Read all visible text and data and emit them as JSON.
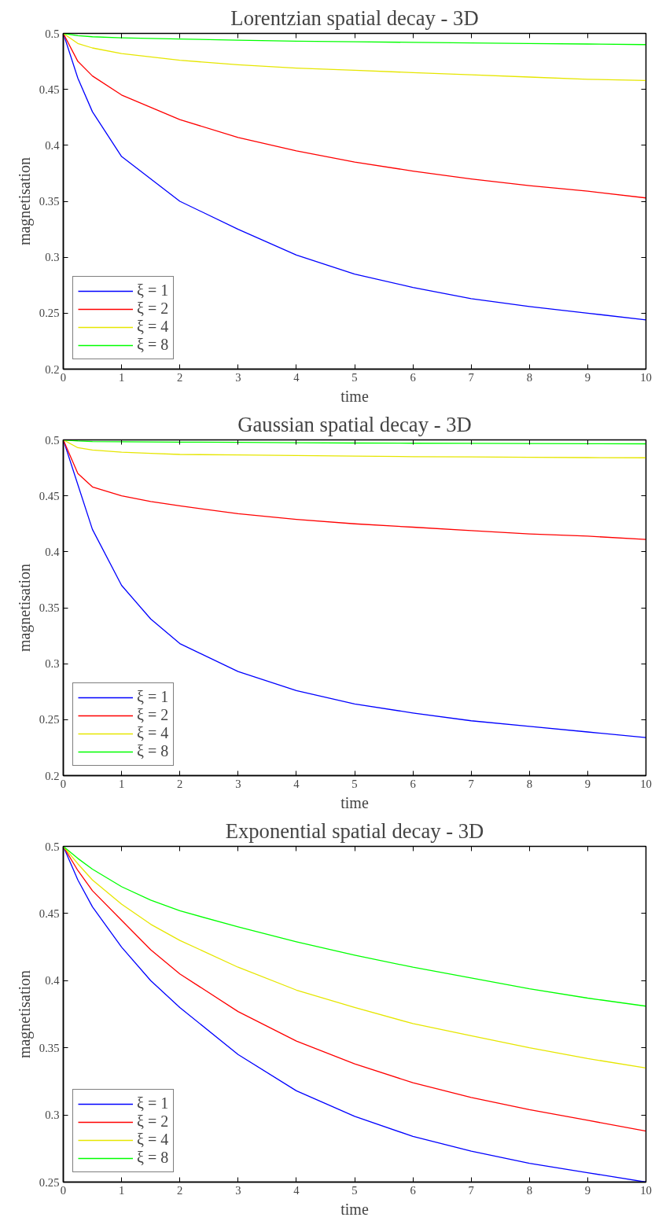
{
  "chart_data": [
    {
      "type": "line",
      "title": "Lorentzian spatial decay - 3D",
      "xlabel": "time",
      "ylabel": "magnetisation",
      "x": [
        0,
        0.25,
        0.5,
        1,
        2,
        3,
        4,
        5,
        6,
        7,
        8,
        9,
        10
      ],
      "xlim": [
        0,
        10
      ],
      "ylim": [
        0.2,
        0.5
      ],
      "xticks": [
        0,
        1,
        2,
        3,
        4,
        5,
        6,
        7,
        8,
        9,
        10
      ],
      "yticks": [
        0.2,
        0.25,
        0.3,
        0.35,
        0.4,
        0.45,
        0.5
      ],
      "grid": false,
      "legend": "bottom left",
      "series": [
        {
          "name": "ξ = 1",
          "color": "#0000ff",
          "values": [
            0.5,
            0.46,
            0.43,
            0.39,
            0.35,
            0.325,
            0.302,
            0.285,
            0.273,
            0.263,
            0.256,
            0.25,
            0.244
          ]
        },
        {
          "name": "ξ = 2",
          "color": "#ff0000",
          "values": [
            0.5,
            0.475,
            0.462,
            0.445,
            0.423,
            0.407,
            0.395,
            0.385,
            0.377,
            0.37,
            0.364,
            0.359,
            0.353
          ]
        },
        {
          "name": "ξ = 4",
          "color": "#e6e600",
          "values": [
            0.5,
            0.491,
            0.487,
            0.482,
            0.476,
            0.472,
            0.469,
            0.467,
            0.465,
            0.463,
            0.461,
            0.459,
            0.458
          ]
        },
        {
          "name": "ξ = 8",
          "color": "#00ff00",
          "values": [
            0.5,
            0.498,
            0.497,
            0.496,
            0.495,
            0.494,
            0.493,
            0.4925,
            0.492,
            0.4915,
            0.491,
            0.4905,
            0.49
          ]
        }
      ]
    },
    {
      "type": "line",
      "title": "Gaussian spatial decay - 3D",
      "xlabel": "time",
      "ylabel": "magnetisation",
      "x": [
        0,
        0.25,
        0.5,
        1,
        1.5,
        2,
        3,
        4,
        5,
        6,
        7,
        8,
        9,
        10
      ],
      "xlim": [
        0,
        10
      ],
      "ylim": [
        0.2,
        0.5
      ],
      "xticks": [
        0,
        1,
        2,
        3,
        4,
        5,
        6,
        7,
        8,
        9,
        10
      ],
      "yticks": [
        0.2,
        0.25,
        0.3,
        0.35,
        0.4,
        0.45,
        0.5
      ],
      "grid": false,
      "legend": "bottom left",
      "series": [
        {
          "name": "ξ = 1",
          "color": "#0000ff",
          "values": [
            0.5,
            0.46,
            0.42,
            0.37,
            0.34,
            0.318,
            0.293,
            0.276,
            0.264,
            0.256,
            0.249,
            0.244,
            0.239,
            0.234
          ]
        },
        {
          "name": "ξ = 2",
          "color": "#ff0000",
          "values": [
            0.5,
            0.47,
            0.458,
            0.45,
            0.445,
            0.441,
            0.434,
            0.429,
            0.425,
            0.422,
            0.419,
            0.416,
            0.414,
            0.411
          ]
        },
        {
          "name": "ξ = 4",
          "color": "#e6e600",
          "values": [
            0.5,
            0.493,
            0.491,
            0.489,
            0.488,
            0.487,
            0.4865,
            0.486,
            0.4855,
            0.485,
            0.4848,
            0.4845,
            0.4842,
            0.484
          ]
        },
        {
          "name": "ξ = 8",
          "color": "#00ff00",
          "values": [
            0.5,
            0.499,
            0.4985,
            0.4983,
            0.4981,
            0.498,
            0.4978,
            0.4975,
            0.4972,
            0.497,
            0.4969,
            0.4968,
            0.4966,
            0.4965
          ]
        }
      ]
    },
    {
      "type": "line",
      "title": "Exponential spatial decay - 3D",
      "xlabel": "time",
      "ylabel": "magnetisation",
      "x": [
        0,
        0.25,
        0.5,
        1,
        1.5,
        2,
        3,
        4,
        5,
        6,
        7,
        8,
        9,
        10
      ],
      "xlim": [
        0,
        10
      ],
      "ylim": [
        0.25,
        0.5
      ],
      "xticks": [
        0,
        1,
        2,
        3,
        4,
        5,
        6,
        7,
        8,
        9,
        10
      ],
      "yticks": [
        0.25,
        0.3,
        0.35,
        0.4,
        0.45,
        0.5
      ],
      "grid": false,
      "legend": "bottom left",
      "series": [
        {
          "name": "ξ = 1",
          "color": "#0000ff",
          "values": [
            0.5,
            0.475,
            0.455,
            0.425,
            0.4,
            0.38,
            0.345,
            0.318,
            0.299,
            0.284,
            0.273,
            0.264,
            0.257,
            0.25
          ]
        },
        {
          "name": "ξ = 2",
          "color": "#ff0000",
          "values": [
            0.5,
            0.482,
            0.467,
            0.445,
            0.423,
            0.405,
            0.377,
            0.355,
            0.338,
            0.324,
            0.313,
            0.304,
            0.296,
            0.288
          ]
        },
        {
          "name": "ξ = 4",
          "color": "#e6e600",
          "values": [
            0.5,
            0.487,
            0.475,
            0.457,
            0.442,
            0.43,
            0.41,
            0.393,
            0.38,
            0.368,
            0.359,
            0.35,
            0.342,
            0.335
          ]
        },
        {
          "name": "ξ = 8",
          "color": "#00ff00",
          "values": [
            0.5,
            0.491,
            0.483,
            0.47,
            0.46,
            0.452,
            0.44,
            0.429,
            0.419,
            0.41,
            0.402,
            0.394,
            0.387,
            0.381
          ]
        }
      ]
    }
  ]
}
